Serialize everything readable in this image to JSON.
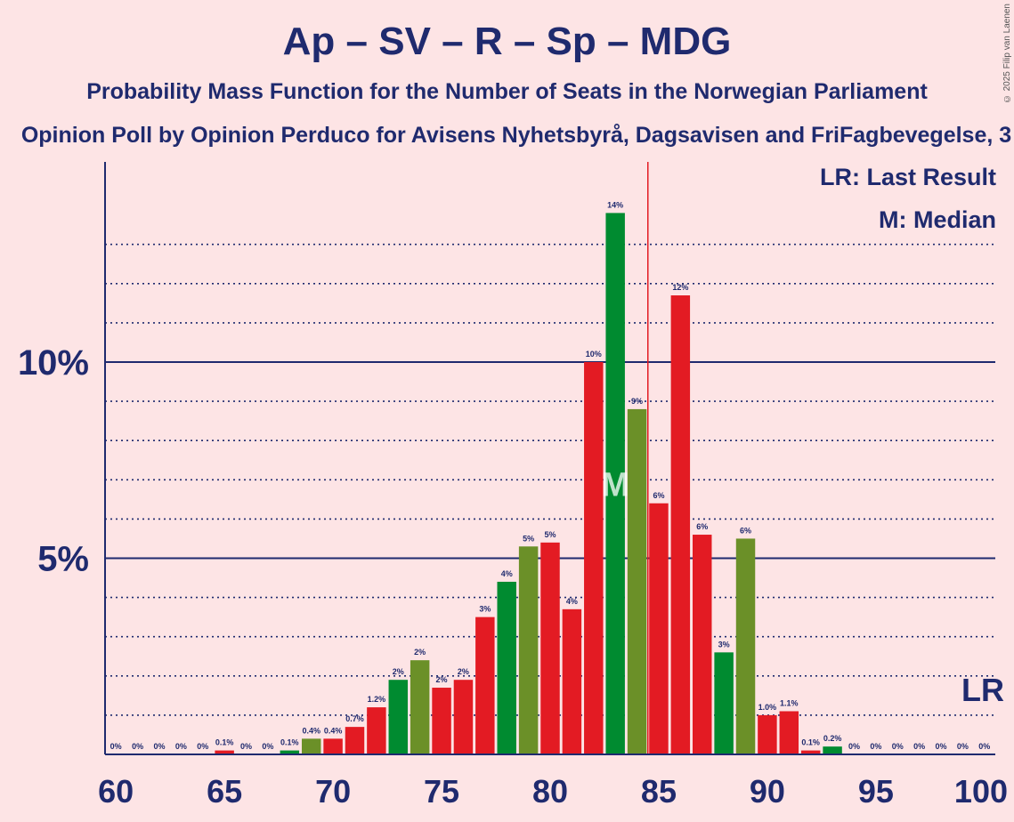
{
  "title": "Ap – SV – R – Sp – MDG",
  "subtitle": "Probability Mass Function for the Number of Seats in the Norwegian Parliament",
  "subtitle2": "Opinion Poll by Opinion Perduco for Avisens Nyhetsbyrå, Dagsavisen and FriFagbevegelse, 3",
  "copyright": "© 2025 Filip van Laenen",
  "legend": {
    "last_result": "LR: Last Result",
    "median": "M: Median"
  },
  "colors": {
    "background": "#FDE4E5",
    "text": "#1F2A6E",
    "red": "#E31B23",
    "green": "#008B30",
    "olive": "#6B9028",
    "last_result_line": "#E31B23"
  },
  "chart_data": {
    "type": "bar",
    "x": [
      60,
      61,
      62,
      63,
      64,
      65,
      66,
      67,
      68,
      69,
      70,
      71,
      72,
      73,
      74,
      75,
      76,
      77,
      78,
      79,
      80,
      81,
      82,
      83,
      84,
      85,
      86,
      87,
      88,
      89,
      90,
      91,
      92,
      93,
      94,
      95,
      96,
      97,
      98,
      99,
      100
    ],
    "values": [
      0,
      0,
      0,
      0,
      0,
      0.1,
      0,
      0,
      0.1,
      0.4,
      0.4,
      0.7,
      1.2,
      1.9,
      2.4,
      1.7,
      1.9,
      3.5,
      4.4,
      5.3,
      5.4,
      3.7,
      10.0,
      13.8,
      8.8,
      6.4,
      11.7,
      5.6,
      2.6,
      5.5,
      1.0,
      1.1,
      0.1,
      0.2,
      0,
      0,
      0,
      0,
      0,
      0,
      0
    ],
    "labels": [
      "0%",
      "0%",
      "0%",
      "0%",
      "0%",
      "0.1%",
      "0%",
      "0%",
      "0.1%",
      "0.4%",
      "0.4%",
      "0.7%",
      "1.2%",
      "2%",
      "2%",
      "2%",
      "2%",
      "3%",
      "4%",
      "5%",
      "5%",
      "4%",
      "10%",
      "14%",
      "9%",
      "6%",
      "12%",
      "6%",
      "3%",
      "6%",
      "1.0%",
      "1.1%",
      "0.1%",
      "0.2%",
      "0%",
      "0%",
      "0%",
      "0%",
      "0%",
      "0%",
      "0%"
    ],
    "colors": [
      "red",
      "red",
      "red",
      "red",
      "red",
      "red",
      "red",
      "red",
      "green",
      "olive",
      "red",
      "red",
      "red",
      "green",
      "olive",
      "red",
      "red",
      "red",
      "green",
      "olive",
      "red",
      "red",
      "red",
      "green",
      "olive",
      "red",
      "red",
      "red",
      "green",
      "olive",
      "red",
      "red",
      "red",
      "green",
      "olive",
      "red",
      "red",
      "red",
      "green",
      "olive",
      "red"
    ],
    "x_ticks": [
      60,
      65,
      70,
      75,
      80,
      85,
      90,
      95,
      100
    ],
    "x_tick_labels": [
      "60",
      "65",
      "70",
      "75",
      "80",
      "85",
      "90",
      "95",
      "100"
    ],
    "y_ticks": [
      5,
      10
    ],
    "y_tick_labels": [
      "5%",
      "10%"
    ],
    "ylim": [
      0,
      15
    ],
    "xlim": [
      59.5,
      100.5
    ],
    "dotted_gridlines": [
      1,
      2,
      3,
      4,
      6,
      7,
      8,
      9,
      11,
      12,
      13
    ],
    "median": 83,
    "median_label": "M",
    "last_result": 84.5,
    "last_result_label": "LR"
  }
}
